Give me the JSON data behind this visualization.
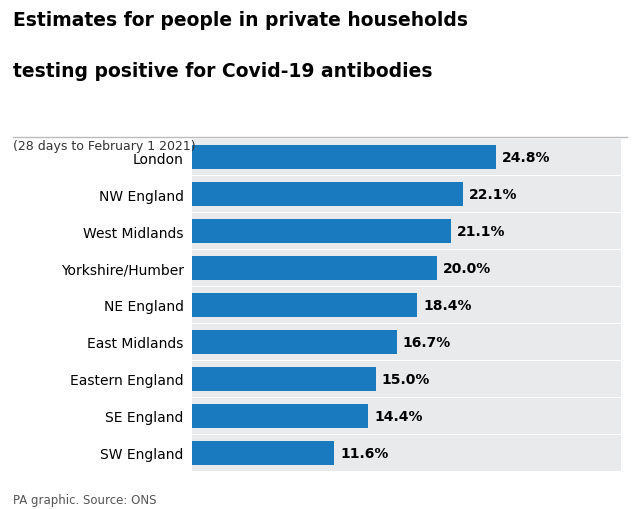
{
  "title_line1": "Estimates for people in private households",
  "title_line2": "testing positive for Covid-19 antibodies",
  "subtitle": "(28 days to February 1 2021)",
  "footer": "PA graphic. Source: ONS",
  "categories": [
    "London",
    "NW England",
    "West Midlands",
    "Yorkshire/Humber",
    "NE England",
    "East Midlands",
    "Eastern England",
    "SE England",
    "SW England"
  ],
  "values": [
    24.8,
    22.1,
    21.1,
    20.0,
    18.4,
    16.7,
    15.0,
    14.4,
    11.6
  ],
  "labels": [
    "24.8%",
    "22.1%",
    "21.1%",
    "20.0%",
    "18.4%",
    "16.7%",
    "15.0%",
    "14.4%",
    "11.6%"
  ],
  "bar_color": "#1a7abf",
  "row_bg_color": "#e8eaec",
  "title_bg_color": "#ffffff",
  "fig_bg_color": "#ffffff",
  "title_color": "#000000",
  "subtitle_color": "#333333",
  "label_color": "#000000",
  "footer_color": "#555555",
  "xlim": [
    0,
    35
  ],
  "bar_height": 0.65
}
